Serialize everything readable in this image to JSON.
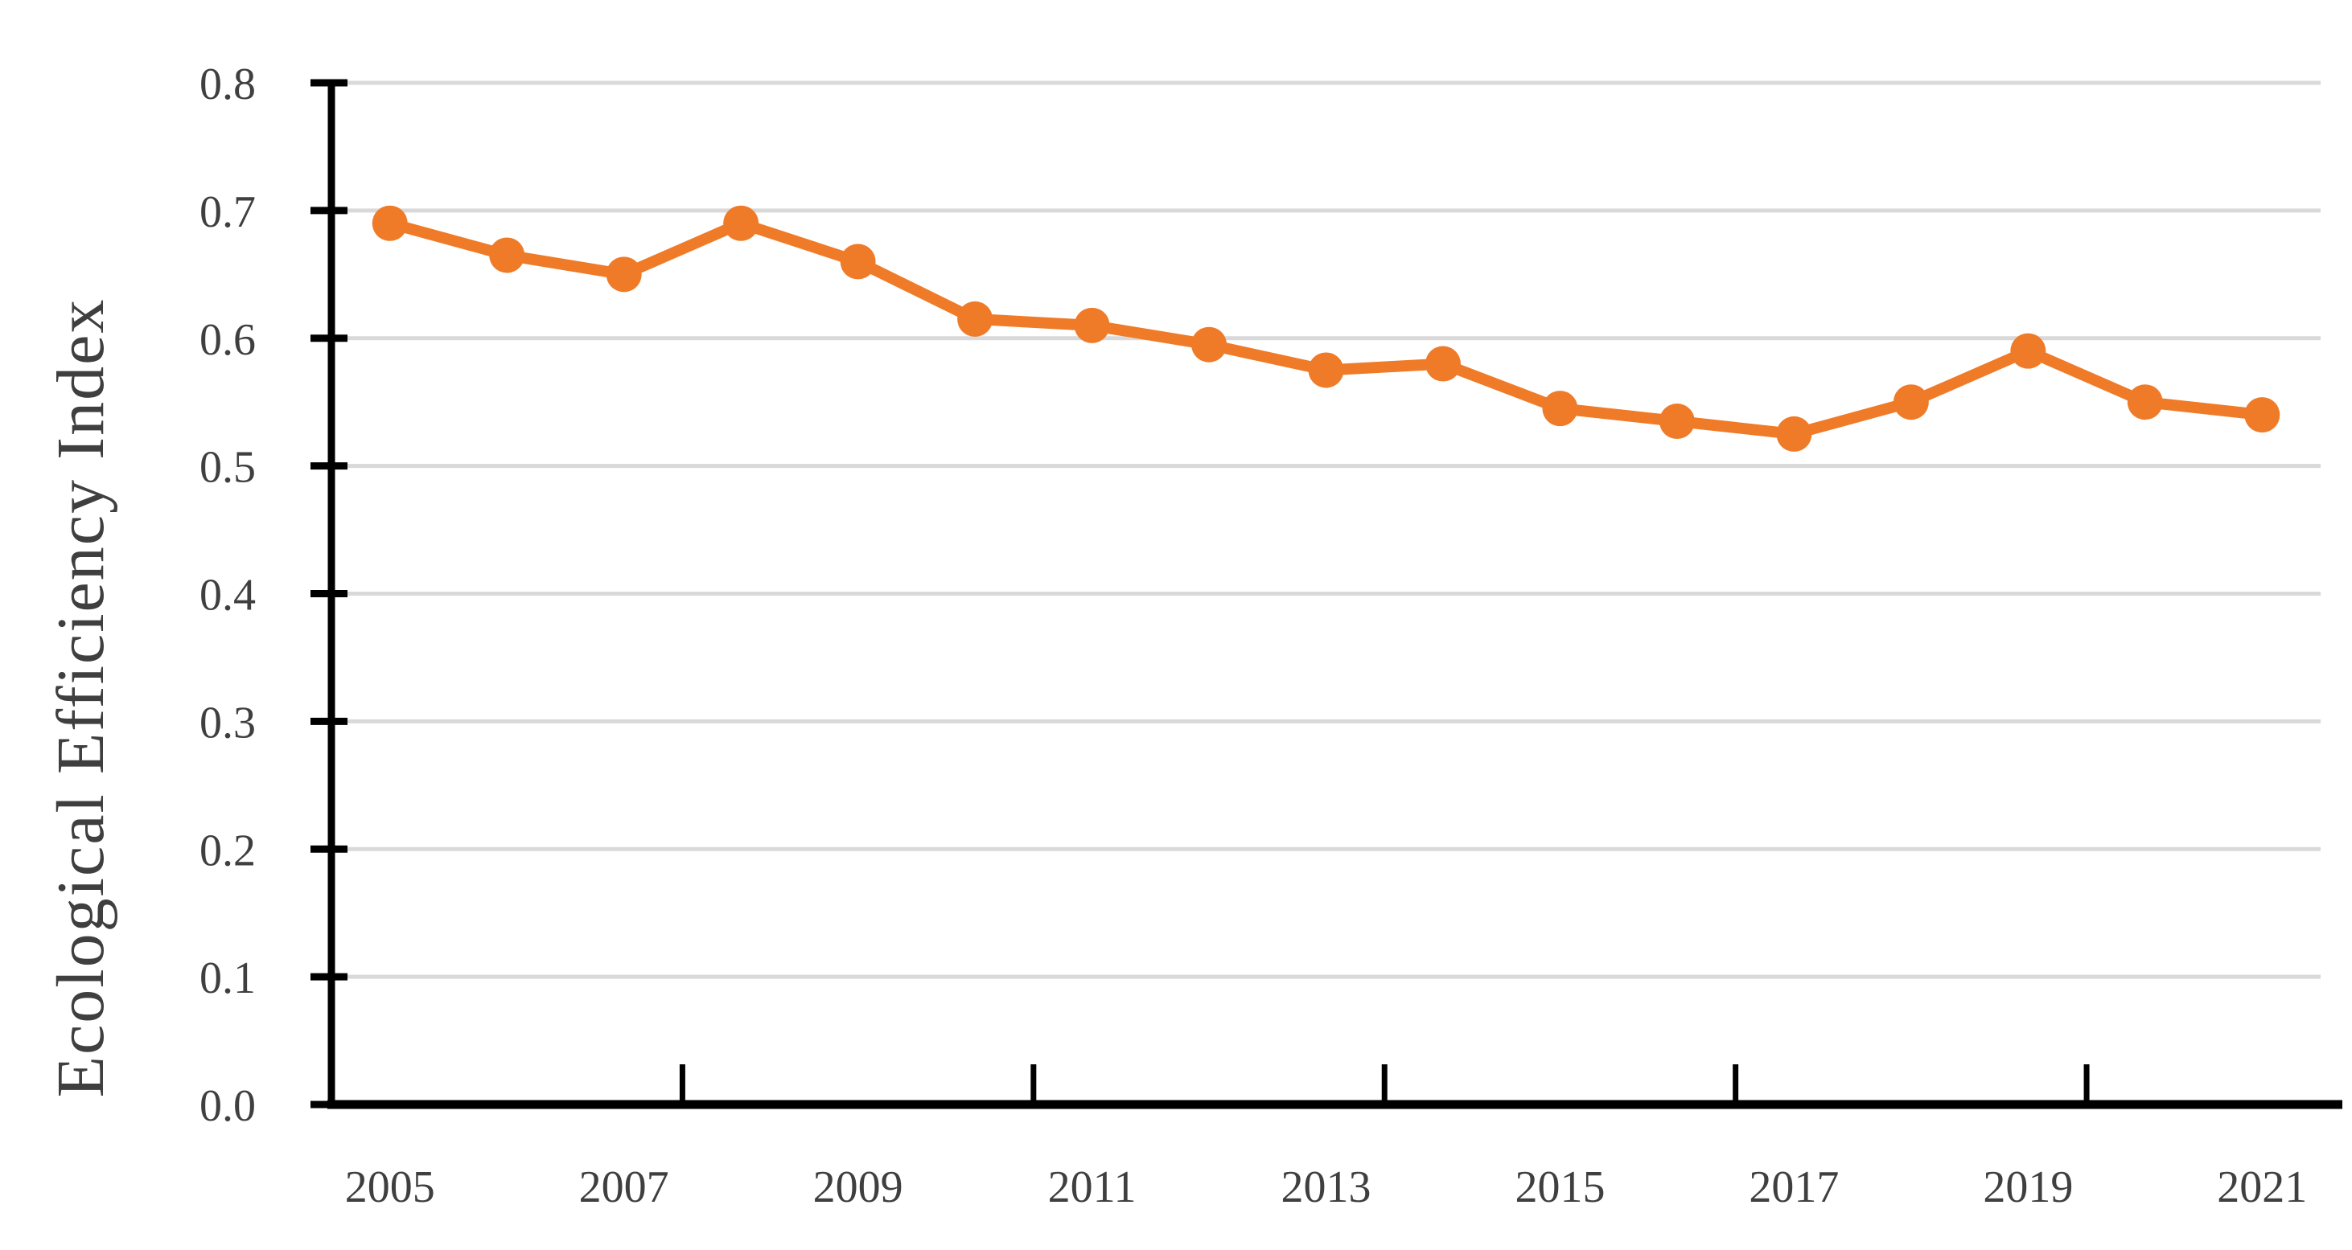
{
  "page": {
    "background": "#FFFFFF"
  },
  "chart_data": {
    "type": "line",
    "title": "",
    "xlabel": "",
    "ylabel": "Ecological Efficiency Index",
    "categories": [
      "2005",
      "2006",
      "2007",
      "2008",
      "2009",
      "2010",
      "2011",
      "2012",
      "2013",
      "2014",
      "2015",
      "2016",
      "2017",
      "2018",
      "2019",
      "2020",
      "2021"
    ],
    "series": [
      {
        "name": "Ecological Efficiency Index",
        "color": "#EF7B28",
        "values": [
          0.69,
          0.665,
          0.65,
          0.69,
          0.66,
          0.615,
          0.61,
          0.595,
          0.575,
          0.58,
          0.545,
          0.535,
          0.525,
          0.55,
          0.59,
          0.55,
          0.54
        ]
      }
    ],
    "ylim": [
      0.0,
      0.8
    ],
    "y_tick_step": 0.1,
    "y_tick_labels": [
      "0.0",
      "0.1",
      "0.2",
      "0.3",
      "0.4",
      "0.5",
      "0.6",
      "0.7",
      "0.8"
    ],
    "x_tick_labels": [
      "2005",
      "2007",
      "2009",
      "2011",
      "2013",
      "2015",
      "2017",
      "2019",
      "2021"
    ],
    "x_label_interval": 2,
    "x_tick_mark_interval": 3,
    "grid": "horizontal-only",
    "legend_position": "none",
    "marker": "circle",
    "colors": {
      "gridline": "#D9D9D9",
      "axis": "#000000",
      "tick_label": "#3F3F3F",
      "axis_title": "#3F3F3F"
    }
  }
}
